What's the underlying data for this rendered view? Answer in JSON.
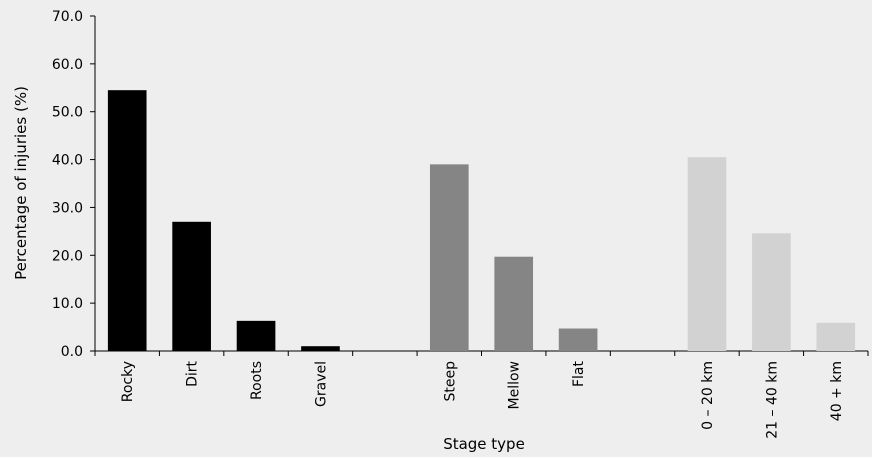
{
  "chart_data": {
    "type": "bar",
    "xlabel": "Stage type",
    "ylabel": "Percentage of injuries (%)",
    "ylim": [
      0,
      70
    ],
    "yticks": [
      "0.0",
      "10.0",
      "20.0",
      "30.0",
      "40.0",
      "50.0",
      "60.0",
      "70.0"
    ],
    "grid": false,
    "legend": "none",
    "categories": [
      "Rocky",
      "Dirt",
      "Roots",
      "Gravel",
      "",
      "Steep",
      "Mellow",
      "Flat",
      "",
      "0 – 20 km",
      "21 – 40 km",
      "40 + km"
    ],
    "values": [
      54.5,
      27.0,
      6.3,
      1.0,
      null,
      39.0,
      19.7,
      4.7,
      null,
      40.5,
      24.6,
      5.9
    ],
    "colors": [
      "#000000",
      "#000000",
      "#000000",
      "#000000",
      null,
      "#858585",
      "#858585",
      "#858585",
      null,
      "#d2d2d2",
      "#d2d2d2",
      "#d2d2d2"
    ]
  }
}
